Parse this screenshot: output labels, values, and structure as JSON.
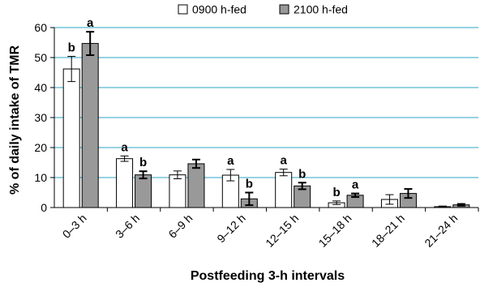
{
  "chart_data": {
    "type": "bar",
    "ylabel": "% of daily intake of TMR",
    "xlabel": "Postfeeding 3-h intervals",
    "ylim": [
      0,
      60
    ],
    "yticks": [
      0,
      10,
      20,
      30,
      40,
      50,
      60
    ],
    "grid": true,
    "legend_position": "top",
    "categories": [
      "0–3 h",
      "3–6 h",
      "6–9 h",
      "9–12 h",
      "12–15 h",
      "15–18 h",
      "18–21 h",
      "21–24 h"
    ],
    "series": [
      {
        "name": "0900 h-fed",
        "color": "#ffffff",
        "values": [
          46.2,
          16.3,
          10.9,
          10.8,
          11.7,
          1.6,
          2.7,
          0.3
        ],
        "errors": [
          4.2,
          0.9,
          1.3,
          1.9,
          1.1,
          0.6,
          1.6,
          0.2
        ],
        "significance": [
          "b",
          "a",
          "",
          "a",
          "a",
          "b",
          "",
          ""
        ]
      },
      {
        "name": "2100 h-fed",
        "color": "#999999",
        "values": [
          54.7,
          10.9,
          14.6,
          2.9,
          7.2,
          4.1,
          4.7,
          0.9
        ],
        "errors": [
          3.9,
          1.2,
          1.4,
          2.1,
          1.1,
          0.6,
          1.5,
          0.3
        ],
        "significance": [
          "a",
          "b",
          "",
          "b",
          "b",
          "a",
          "",
          ""
        ]
      }
    ]
  }
}
